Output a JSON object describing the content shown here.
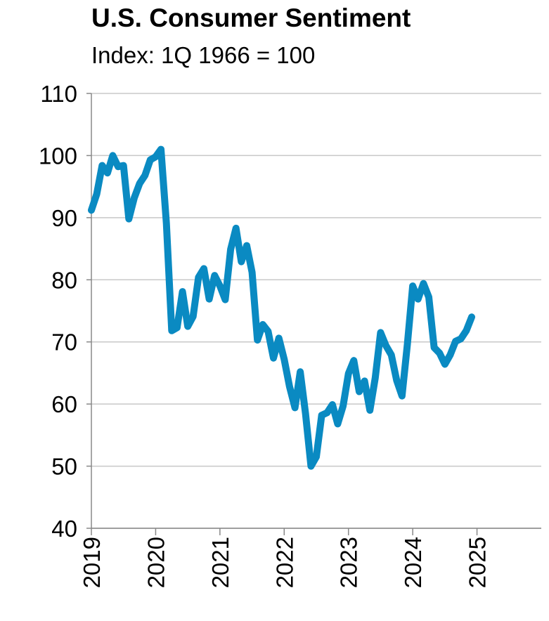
{
  "chart_data": {
    "type": "line",
    "title": "U.S. Consumer Sentiment",
    "subtitle": "Index: 1Q 1966 = 100",
    "x": [
      2019.0,
      2019.083,
      2019.167,
      2019.25,
      2019.333,
      2019.417,
      2019.5,
      2019.583,
      2019.667,
      2019.75,
      2019.833,
      2019.917,
      2020.0,
      2020.083,
      2020.167,
      2020.25,
      2020.333,
      2020.417,
      2020.5,
      2020.583,
      2020.667,
      2020.75,
      2020.833,
      2020.917,
      2021.0,
      2021.083,
      2021.167,
      2021.25,
      2021.333,
      2021.417,
      2021.5,
      2021.583,
      2021.667,
      2021.75,
      2021.833,
      2021.917,
      2022.0,
      2022.083,
      2022.167,
      2022.25,
      2022.333,
      2022.417,
      2022.5,
      2022.583,
      2022.667,
      2022.75,
      2022.833,
      2022.917,
      2023.0,
      2023.083,
      2023.167,
      2023.25,
      2023.333,
      2023.417,
      2023.5,
      2023.583,
      2023.667,
      2023.75,
      2023.833,
      2023.917,
      2024.0,
      2024.083,
      2024.167,
      2024.25,
      2024.333,
      2024.417,
      2024.5,
      2024.583,
      2024.667,
      2024.75,
      2024.833,
      2024.917
    ],
    "series": [
      {
        "name": "Consumer Sentiment",
        "color": "#0a8ac2",
        "values": [
          91.2,
          93.8,
          98.4,
          97.2,
          100.0,
          98.2,
          98.4,
          89.8,
          93.2,
          95.5,
          96.8,
          99.3,
          99.8,
          101.0,
          89.1,
          71.8,
          72.3,
          78.1,
          72.5,
          74.1,
          80.4,
          81.8,
          76.9,
          80.7,
          79.0,
          76.8,
          84.9,
          88.3,
          82.9,
          85.5,
          81.2,
          70.3,
          72.8,
          71.7,
          67.4,
          70.6,
          67.2,
          62.8,
          59.4,
          65.2,
          58.4,
          50.0,
          51.5,
          58.2,
          58.6,
          59.9,
          56.8,
          59.7,
          64.9,
          67.0,
          62.0,
          63.7,
          59.0,
          64.2,
          71.5,
          69.4,
          67.9,
          63.8,
          61.3,
          69.7,
          79.0,
          76.9,
          79.4,
          77.2,
          69.1,
          68.2,
          66.4,
          67.9,
          70.1,
          70.5,
          71.8,
          74.0
        ]
      }
    ],
    "xlim": [
      2019,
      2026
    ],
    "xticks": [
      2019,
      2020,
      2021,
      2022,
      2023,
      2024,
      2025
    ],
    "ylim": [
      40,
      110
    ],
    "yticks": [
      40,
      50,
      60,
      70,
      80,
      90,
      100,
      110
    ],
    "grid": true
  }
}
